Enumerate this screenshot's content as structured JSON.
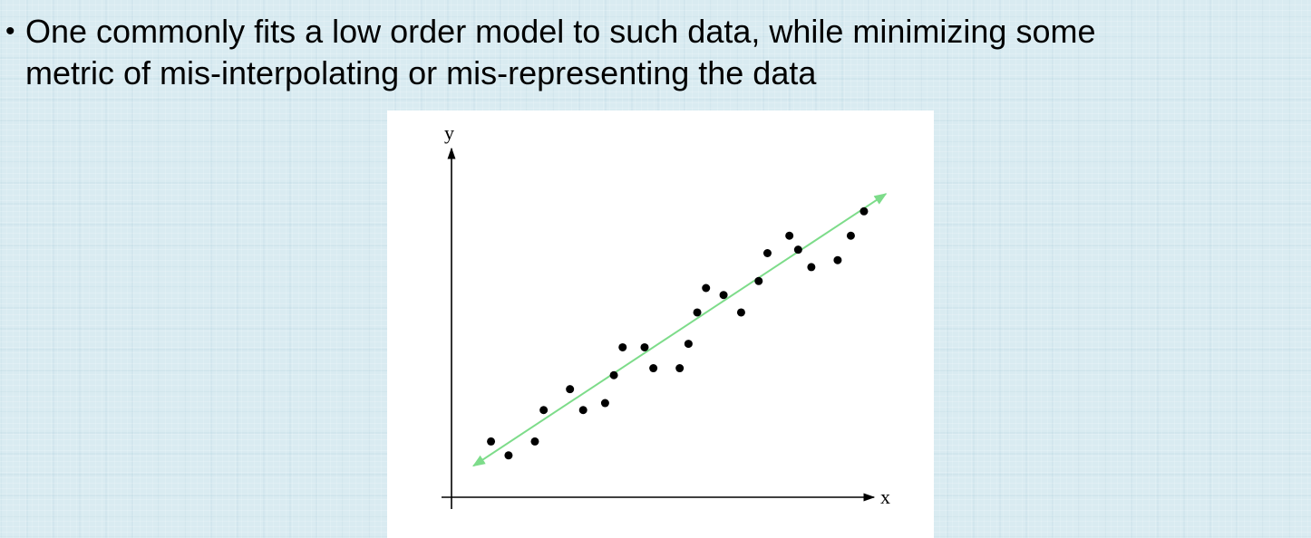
{
  "slide": {
    "bullet": "One commonly fits a low order model to such data, while minimizing some\nmetric of mis-interpolating or mis-representing the data"
  },
  "colors": {
    "background": "#d9ebf1",
    "fit_line": "#7ddc8a",
    "points": "#000000",
    "axes": "#000000"
  },
  "chart_data": {
    "type": "scatter",
    "xlabel": "x",
    "ylabel": "y",
    "xlim": [
      0,
      1
    ],
    "ylim": [
      0,
      1
    ],
    "grid": false,
    "points": [
      {
        "x": 0.09,
        "y": 0.16
      },
      {
        "x": 0.13,
        "y": 0.12
      },
      {
        "x": 0.19,
        "y": 0.16
      },
      {
        "x": 0.21,
        "y": 0.25
      },
      {
        "x": 0.27,
        "y": 0.31
      },
      {
        "x": 0.3,
        "y": 0.25
      },
      {
        "x": 0.35,
        "y": 0.27
      },
      {
        "x": 0.37,
        "y": 0.35
      },
      {
        "x": 0.39,
        "y": 0.43
      },
      {
        "x": 0.44,
        "y": 0.43
      },
      {
        "x": 0.46,
        "y": 0.37
      },
      {
        "x": 0.52,
        "y": 0.37
      },
      {
        "x": 0.54,
        "y": 0.44
      },
      {
        "x": 0.56,
        "y": 0.53
      },
      {
        "x": 0.58,
        "y": 0.6
      },
      {
        "x": 0.62,
        "y": 0.58
      },
      {
        "x": 0.66,
        "y": 0.53
      },
      {
        "x": 0.7,
        "y": 0.62
      },
      {
        "x": 0.72,
        "y": 0.7
      },
      {
        "x": 0.77,
        "y": 0.75
      },
      {
        "x": 0.79,
        "y": 0.71
      },
      {
        "x": 0.82,
        "y": 0.66
      },
      {
        "x": 0.88,
        "y": 0.68
      },
      {
        "x": 0.91,
        "y": 0.75
      },
      {
        "x": 0.94,
        "y": 0.82
      }
    ],
    "fit_line": {
      "x": [
        0.05,
        0.99
      ],
      "y": [
        0.09,
        0.87
      ],
      "arrows": "both"
    }
  }
}
